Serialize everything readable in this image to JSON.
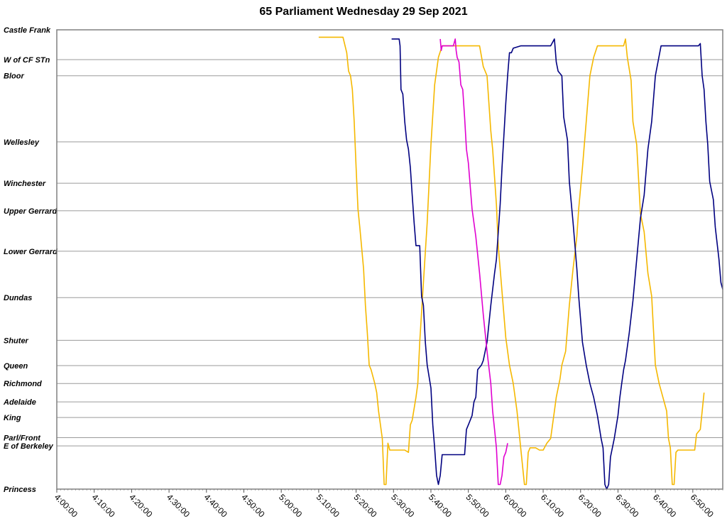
{
  "chart_data": {
    "type": "line",
    "title": "65 Parliament Wednesday 29 Sep 2021",
    "xlabel": "",
    "ylabel": "",
    "x_axis": {
      "min": "4:00:00",
      "max": "6:58:00",
      "ticks": [
        "4:00:00",
        "4:10:00",
        "4:20:00",
        "4:30:00",
        "4:40:00",
        "4:50:00",
        "5:00:00",
        "5:10:00",
        "5:20:00",
        "5:30:00",
        "5:40:00",
        "5:50:00",
        "6:00:00",
        "6:10:00",
        "6:20:00",
        "6:30:00",
        "6:40:00",
        "6:50:00"
      ]
    },
    "y_axis": {
      "stops": [
        {
          "name": "Castle Frank",
          "pos": 0
        },
        {
          "name": "W of CF STn",
          "pos": 0.065
        },
        {
          "name": "Bloor",
          "pos": 0.1
        },
        {
          "name": "Wellesley",
          "pos": 0.244
        },
        {
          "name": "Winchester",
          "pos": 0.334
        },
        {
          "name": "Upper Gerrard",
          "pos": 0.394
        },
        {
          "name": "Lower Gerrard",
          "pos": 0.482
        },
        {
          "name": "Dundas",
          "pos": 0.583
        },
        {
          "name": "Shuter",
          "pos": 0.676
        },
        {
          "name": "Queen",
          "pos": 0.731
        },
        {
          "name": "Richmond",
          "pos": 0.77
        },
        {
          "name": "Adelaide",
          "pos": 0.81
        },
        {
          "name": "King",
          "pos": 0.844
        },
        {
          "name": "Parl/Front",
          "pos": 0.888
        },
        {
          "name": "E of Berkeley",
          "pos": 0.906
        },
        {
          "name": "Princess",
          "pos": 1
        }
      ]
    },
    "grid": true,
    "legend": "none",
    "series": [
      {
        "color": "#F5B800",
        "points": [
          [
            "5:10:00",
            0.016
          ],
          [
            "5:16:30",
            0.016
          ],
          [
            "5:17:30",
            0.05
          ],
          [
            "5:18:00",
            0.09
          ],
          [
            "5:18:30",
            0.1
          ],
          [
            "5:19:00",
            0.13
          ],
          [
            "5:19:30",
            0.2
          ],
          [
            "5:20:00",
            0.3
          ],
          [
            "5:20:30",
            0.39
          ],
          [
            "5:21:00",
            0.43
          ],
          [
            "5:22:00",
            0.52
          ],
          [
            "5:22:30",
            0.6
          ],
          [
            "5:23:00",
            0.66
          ],
          [
            "5:23:30",
            0.73
          ],
          [
            "5:24:00",
            0.74
          ],
          [
            "5:25:00",
            0.77
          ],
          [
            "5:25:30",
            0.79
          ],
          [
            "5:26:00",
            0.83
          ],
          [
            "5:27:00",
            0.89
          ],
          [
            "5:27:30",
            0.99
          ],
          [
            "5:28:00",
            0.99
          ],
          [
            "5:28:30",
            0.9
          ],
          [
            "5:29:00",
            0.915
          ],
          [
            "5:33:00",
            0.915
          ],
          [
            "5:34:00",
            0.92
          ],
          [
            "5:34:30",
            0.86
          ],
          [
            "5:35:00",
            0.85
          ],
          [
            "5:36:00",
            0.8
          ],
          [
            "5:36:30",
            0.77
          ],
          [
            "5:37:00",
            0.68
          ],
          [
            "5:38:00",
            0.55
          ],
          [
            "5:39:00",
            0.42
          ],
          [
            "5:40:00",
            0.25
          ],
          [
            "5:41:00",
            0.12
          ],
          [
            "5:42:00",
            0.06
          ],
          [
            "5:43:00",
            0.035
          ],
          [
            "5:53:00",
            0.035
          ],
          [
            "5:54:00",
            0.08
          ],
          [
            "5:55:00",
            0.1
          ],
          [
            "5:56:00",
            0.22
          ],
          [
            "5:56:30",
            0.26
          ],
          [
            "5:57:30",
            0.38
          ],
          [
            "5:58:00",
            0.47
          ],
          [
            "5:59:00",
            0.57
          ],
          [
            "6:00:00",
            0.67
          ],
          [
            "6:01:00",
            0.73
          ],
          [
            "6:02:00",
            0.77
          ],
          [
            "6:03:00",
            0.83
          ],
          [
            "6:04:00",
            0.91
          ],
          [
            "6:05:00",
            0.99
          ],
          [
            "6:05:30",
            0.99
          ],
          [
            "6:06:00",
            0.92
          ],
          [
            "6:06:30",
            0.91
          ],
          [
            "6:08:00",
            0.91
          ],
          [
            "6:09:00",
            0.915
          ],
          [
            "6:10:00",
            0.915
          ],
          [
            "6:11:00",
            0.9
          ],
          [
            "6:12:00",
            0.89
          ],
          [
            "6:13:00",
            0.83
          ],
          [
            "6:13:30",
            0.8
          ],
          [
            "6:14:30",
            0.76
          ],
          [
            "6:15:00",
            0.73
          ],
          [
            "6:16:00",
            0.7
          ],
          [
            "6:17:00",
            0.6
          ],
          [
            "6:18:00",
            0.52
          ],
          [
            "6:19:00",
            0.45
          ],
          [
            "6:19:30",
            0.39
          ],
          [
            "6:20:30",
            0.3
          ],
          [
            "6:21:30",
            0.2
          ],
          [
            "6:22:30",
            0.1
          ],
          [
            "6:23:30",
            0.06
          ],
          [
            "6:24:30",
            0.035
          ],
          [
            "6:31:30",
            0.035
          ],
          [
            "6:32:00",
            0.02
          ],
          [
            "6:32:30",
            0.06
          ],
          [
            "6:33:30",
            0.11
          ],
          [
            "6:34:00",
            0.2
          ],
          [
            "6:35:00",
            0.25
          ],
          [
            "6:36:00",
            0.4
          ],
          [
            "6:37:00",
            0.44
          ],
          [
            "6:38:00",
            0.53
          ],
          [
            "6:39:00",
            0.58
          ],
          [
            "6:40:00",
            0.73
          ],
          [
            "6:41:00",
            0.77
          ],
          [
            "6:42:00",
            0.8
          ],
          [
            "6:43:00",
            0.83
          ],
          [
            "6:43:30",
            0.89
          ],
          [
            "6:44:00",
            0.91
          ],
          [
            "6:44:30",
            0.99
          ],
          [
            "6:45:00",
            0.99
          ],
          [
            "6:45:30",
            0.92
          ],
          [
            "6:46:00",
            0.915
          ],
          [
            "6:50:30",
            0.915
          ],
          [
            "6:51:00",
            0.88
          ],
          [
            "6:52:00",
            0.87
          ],
          [
            "6:53:00",
            0.79
          ]
        ]
      },
      {
        "color": "#000080",
        "points": [
          [
            "5:29:30",
            0.02
          ],
          [
            "5:31:30",
            0.02
          ],
          [
            "5:31:45",
            0.035
          ],
          [
            "5:32:00",
            0.13
          ],
          [
            "5:32:30",
            0.14
          ],
          [
            "5:33:00",
            0.2
          ],
          [
            "5:33:30",
            0.24
          ],
          [
            "5:34:00",
            0.26
          ],
          [
            "5:34:30",
            0.3
          ],
          [
            "5:35:00",
            0.36
          ],
          [
            "5:35:30",
            0.42
          ],
          [
            "5:36:00",
            0.47
          ],
          [
            "5:37:00",
            0.47
          ],
          [
            "5:37:30",
            0.58
          ],
          [
            "5:38:00",
            0.6
          ],
          [
            "5:38:30",
            0.68
          ],
          [
            "5:39:00",
            0.73
          ],
          [
            "5:40:00",
            0.78
          ],
          [
            "5:40:30",
            0.86
          ],
          [
            "5:41:00",
            0.91
          ],
          [
            "5:41:30",
            0.97
          ],
          [
            "5:42:00",
            0.99
          ],
          [
            "5:42:30",
            0.97
          ],
          [
            "5:43:00",
            0.925
          ],
          [
            "5:49:00",
            0.925
          ],
          [
            "5:49:30",
            0.87
          ],
          [
            "5:50:00",
            0.86
          ],
          [
            "5:51:00",
            0.84
          ],
          [
            "5:51:30",
            0.81
          ],
          [
            "5:52:00",
            0.8
          ],
          [
            "5:52:30",
            0.74
          ],
          [
            "5:53:30",
            0.73
          ],
          [
            "5:54:00",
            0.72
          ],
          [
            "5:55:00",
            0.68
          ],
          [
            "5:56:00",
            0.6
          ],
          [
            "5:57:00",
            0.53
          ],
          [
            "5:57:30",
            0.5
          ],
          [
            "5:58:30",
            0.38
          ],
          [
            "5:59:00",
            0.3
          ],
          [
            "6:00:00",
            0.16
          ],
          [
            "6:00:30",
            0.1
          ],
          [
            "6:01:00",
            0.05
          ],
          [
            "6:01:30",
            0.05
          ],
          [
            "6:02:00",
            0.04
          ],
          [
            "6:04:00",
            0.035
          ],
          [
            "6:12:00",
            0.035
          ],
          [
            "6:13:00",
            0.02
          ],
          [
            "6:13:30",
            0.07
          ],
          [
            "6:14:00",
            0.09
          ],
          [
            "6:15:00",
            0.1
          ],
          [
            "6:15:30",
            0.19
          ],
          [
            "6:16:30",
            0.24
          ],
          [
            "6:17:00",
            0.33
          ],
          [
            "6:18:00",
            0.42
          ],
          [
            "6:19:00",
            0.52
          ],
          [
            "6:19:30",
            0.58
          ],
          [
            "6:20:30",
            0.68
          ],
          [
            "6:21:30",
            0.73
          ],
          [
            "6:22:30",
            0.77
          ],
          [
            "6:23:30",
            0.8
          ],
          [
            "6:24:30",
            0.84
          ],
          [
            "6:25:30",
            0.89
          ],
          [
            "6:26:00",
            0.91
          ],
          [
            "6:26:30",
            0.99
          ],
          [
            "6:27:00",
            1
          ],
          [
            "6:27:30",
            0.99
          ],
          [
            "6:28:00",
            0.93
          ],
          [
            "6:29:00",
            0.89
          ],
          [
            "6:30:00",
            0.84
          ],
          [
            "6:30:30",
            0.8
          ],
          [
            "6:31:00",
            0.77
          ],
          [
            "6:31:30",
            0.74
          ],
          [
            "6:32:00",
            0.72
          ],
          [
            "6:33:00",
            0.66
          ],
          [
            "6:34:00",
            0.59
          ],
          [
            "6:35:00",
            0.5
          ],
          [
            "6:36:00",
            0.41
          ],
          [
            "6:37:00",
            0.36
          ],
          [
            "6:38:00",
            0.26
          ],
          [
            "6:39:00",
            0.2
          ],
          [
            "6:40:00",
            0.1
          ],
          [
            "6:41:30",
            0.035
          ],
          [
            "6:51:30",
            0.035
          ],
          [
            "6:52:00",
            0.03
          ],
          [
            "6:52:30",
            0.1
          ],
          [
            "6:53:00",
            0.13
          ],
          [
            "6:53:30",
            0.2
          ],
          [
            "6:54:00",
            0.25
          ],
          [
            "6:54:30",
            0.33
          ],
          [
            "6:55:30",
            0.37
          ],
          [
            "6:56:00",
            0.43
          ],
          [
            "6:57:00",
            0.5
          ],
          [
            "6:57:30",
            0.55
          ],
          [
            "6:58:00",
            0.565
          ]
        ]
      },
      {
        "color": "#E000D0",
        "points": [
          [
            "5:42:30",
            0.02
          ],
          [
            "5:42:45",
            0.045
          ],
          [
            "5:43:00",
            0.035
          ],
          [
            "5:46:00",
            0.035
          ],
          [
            "5:46:30",
            0.02
          ],
          [
            "5:46:45",
            0.045
          ],
          [
            "5:47:00",
            0.06
          ],
          [
            "5:47:30",
            0.07
          ],
          [
            "5:48:00",
            0.12
          ],
          [
            "5:48:30",
            0.13
          ],
          [
            "5:49:00",
            0.19
          ],
          [
            "5:49:30",
            0.26
          ],
          [
            "5:50:00",
            0.29
          ],
          [
            "5:51:00",
            0.39
          ],
          [
            "5:52:00",
            0.45
          ],
          [
            "5:53:00",
            0.53
          ],
          [
            "5:54:00",
            0.62
          ],
          [
            "5:55:00",
            0.7
          ],
          [
            "5:56:00",
            0.77
          ],
          [
            "5:56:30",
            0.83
          ],
          [
            "5:57:00",
            0.87
          ],
          [
            "5:57:30",
            0.91
          ],
          [
            "5:58:00",
            0.99
          ],
          [
            "5:58:30",
            0.99
          ],
          [
            "5:59:00",
            0.97
          ],
          [
            "5:59:30",
            0.93
          ],
          [
            "6:00:00",
            0.92
          ],
          [
            "6:00:30",
            0.9
          ]
        ]
      }
    ]
  }
}
